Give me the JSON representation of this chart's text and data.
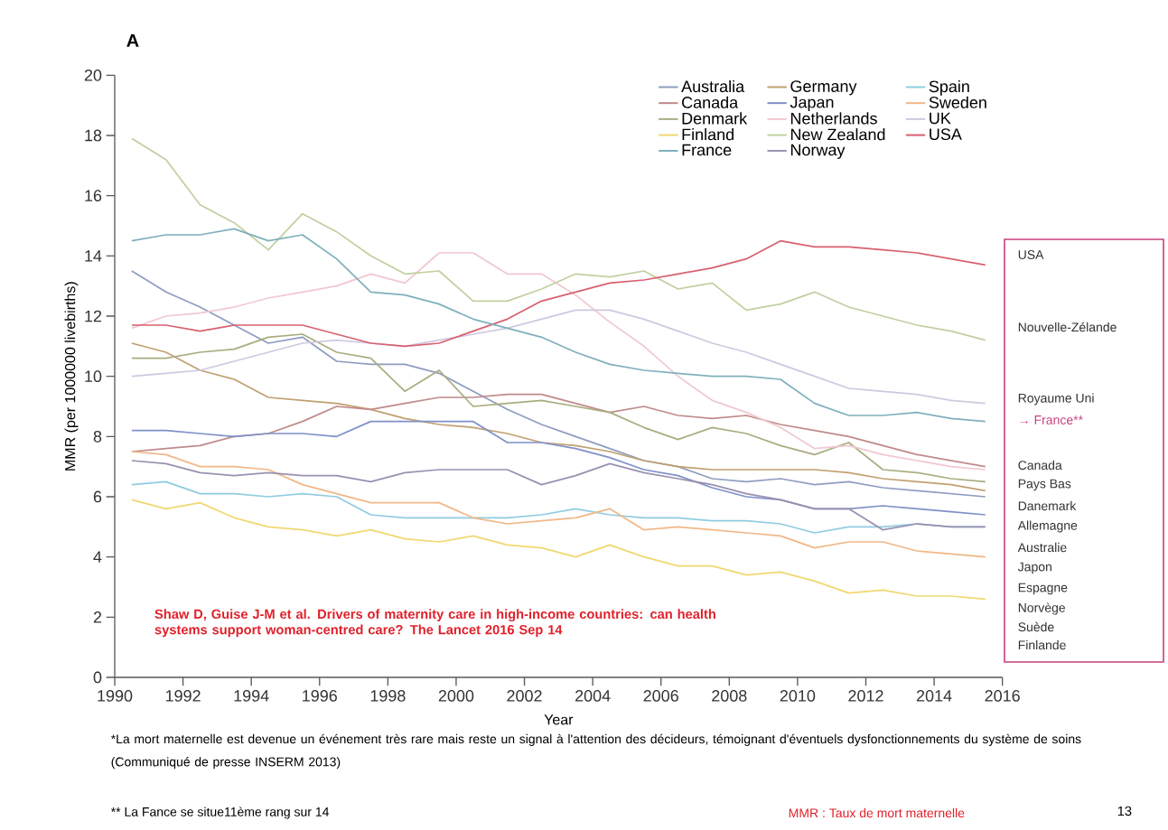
{
  "chart_data": {
    "type": "line",
    "title": "A",
    "xlabel": "Year",
    "ylabel": "MMR (per 1000000 livebirths)",
    "x": [
      1990.5,
      1991.5,
      1992.5,
      1993.5,
      1994.5,
      1995.5,
      1996.5,
      1997.5,
      1998.5,
      1999.5,
      2000.5,
      2001.5,
      2002.5,
      2003.5,
      2004.5,
      2005.5,
      2006.5,
      2007.5,
      2008.5,
      2009.5,
      2010.5,
      2011.5,
      2012.5,
      2013.5,
      2014.5,
      2015.5
    ],
    "xlim": [
      1990,
      2016
    ],
    "xticks": [
      1990,
      1992,
      1994,
      1996,
      1998,
      2000,
      2002,
      2004,
      2006,
      2008,
      2010,
      2012,
      2014,
      2016
    ],
    "ylim": [
      0,
      20
    ],
    "yticks": [
      0,
      2,
      4,
      6,
      8,
      10,
      12,
      14,
      16,
      18,
      20
    ],
    "legend": "top right",
    "marker": "none",
    "line_style": "solid",
    "series": [
      {
        "name": "Australia",
        "color": "#8e9dc0",
        "values": [
          13.5,
          12.8,
          12.3,
          11.7,
          11.1,
          11.3,
          10.5,
          10.4,
          10.4,
          10.1,
          9.5,
          8.9,
          8.4,
          8.0,
          7.6,
          7.2,
          7.0,
          6.6,
          6.5,
          6.6,
          6.4,
          6.5,
          6.3,
          6.2,
          6.1,
          6.0
        ]
      },
      {
        "name": "Canada",
        "color": "#c08a8a",
        "values": [
          7.5,
          7.6,
          7.7,
          8.0,
          8.1,
          8.5,
          9.0,
          8.9,
          9.1,
          9.3,
          9.3,
          9.4,
          9.4,
          9.1,
          8.8,
          9.0,
          8.7,
          8.6,
          8.7,
          8.4,
          8.2,
          8.0,
          7.7,
          7.4,
          7.2,
          7.0
        ]
      },
      {
        "name": "Denmark",
        "color": "#a9ad80",
        "values": [
          10.6,
          10.6,
          10.8,
          10.9,
          11.3,
          11.4,
          10.8,
          10.6,
          9.5,
          10.2,
          9.0,
          9.1,
          9.2,
          9.0,
          8.8,
          8.3,
          7.9,
          8.3,
          8.1,
          7.7,
          7.4,
          7.8,
          6.9,
          6.8,
          6.6,
          6.5
        ]
      },
      {
        "name": "Finland",
        "color": "#f0d870",
        "values": [
          5.9,
          5.6,
          5.8,
          5.3,
          5.0,
          4.9,
          4.7,
          4.9,
          4.6,
          4.5,
          4.7,
          4.4,
          4.3,
          4.0,
          4.4,
          4.0,
          3.7,
          3.7,
          3.4,
          3.5,
          3.2,
          2.8,
          2.9,
          2.7,
          2.7,
          2.6
        ]
      },
      {
        "name": "France",
        "color": "#7fb0bc",
        "values": [
          14.5,
          14.7,
          14.7,
          14.9,
          14.5,
          14.7,
          13.9,
          12.8,
          12.7,
          12.4,
          11.9,
          11.6,
          11.3,
          10.8,
          10.4,
          10.2,
          10.1,
          10.0,
          10.0,
          9.9,
          9.1,
          8.7,
          8.7,
          8.8,
          8.6,
          8.5
        ]
      },
      {
        "name": "Germany",
        "color": "#c0a070",
        "values": [
          11.1,
          10.8,
          10.2,
          9.9,
          9.3,
          9.2,
          9.1,
          8.9,
          8.6,
          8.4,
          8.3,
          8.1,
          7.8,
          7.7,
          7.5,
          7.2,
          7.0,
          6.9,
          6.9,
          6.9,
          6.9,
          6.8,
          6.6,
          6.5,
          6.4,
          6.2
        ]
      },
      {
        "name": "Japan",
        "color": "#7f90c8",
        "values": [
          8.2,
          8.2,
          8.1,
          8.0,
          8.1,
          8.1,
          8.0,
          8.5,
          8.5,
          8.5,
          8.5,
          7.8,
          7.8,
          7.6,
          7.3,
          6.9,
          6.7,
          6.3,
          6.0,
          5.9,
          5.6,
          5.6,
          5.7,
          5.6,
          5.5,
          5.4
        ]
      },
      {
        "name": "Netherlands",
        "color": "#f0c8d0",
        "values": [
          11.6,
          12.0,
          12.1,
          12.3,
          12.6,
          12.8,
          13.0,
          13.4,
          13.1,
          14.1,
          14.1,
          13.4,
          13.4,
          12.7,
          11.8,
          11.0,
          10.0,
          9.2,
          8.8,
          8.3,
          7.6,
          7.7,
          7.4,
          7.2,
          7.0,
          6.9
        ]
      },
      {
        "name": "New Zealand",
        "color": "#c0d0a0",
        "values": [
          17.9,
          17.2,
          15.7,
          15.1,
          14.2,
          15.4,
          14.8,
          14.0,
          13.4,
          13.5,
          12.5,
          12.5,
          12.9,
          13.4,
          13.3,
          13.5,
          12.9,
          13.1,
          12.2,
          12.4,
          12.8,
          12.3,
          12.0,
          11.7,
          11.5,
          11.2
        ]
      },
      {
        "name": "Norway",
        "color": "#9a90b0",
        "values": [
          7.2,
          7.1,
          6.8,
          6.7,
          6.8,
          6.7,
          6.7,
          6.5,
          6.8,
          6.9,
          6.9,
          6.9,
          6.4,
          6.7,
          7.1,
          6.8,
          6.6,
          6.4,
          6.1,
          5.9,
          5.6,
          5.6,
          4.9,
          5.1,
          5.0,
          5.0
        ]
      },
      {
        "name": "Spain",
        "color": "#90cce0",
        "values": [
          6.4,
          6.5,
          6.1,
          6.1,
          6.0,
          6.1,
          6.0,
          5.4,
          5.3,
          5.3,
          5.3,
          5.3,
          5.4,
          5.6,
          5.4,
          5.3,
          5.3,
          5.2,
          5.2,
          5.1,
          4.8,
          5.0,
          5.0,
          5.1,
          5.0,
          5.0
        ]
      },
      {
        "name": "Sweden",
        "color": "#f0b888",
        "values": [
          7.5,
          7.4,
          7.0,
          7.0,
          6.9,
          6.4,
          6.1,
          5.8,
          5.8,
          5.8,
          5.3,
          5.1,
          5.2,
          5.3,
          5.6,
          4.9,
          5.0,
          4.9,
          4.8,
          4.7,
          4.3,
          4.5,
          4.5,
          4.2,
          4.1,
          4.0
        ]
      },
      {
        "name": "UK",
        "color": "#d0c8e0",
        "values": [
          10.0,
          10.1,
          10.2,
          10.5,
          10.8,
          11.1,
          11.2,
          11.1,
          11.0,
          11.2,
          11.4,
          11.6,
          11.9,
          12.2,
          12.2,
          11.9,
          11.5,
          11.1,
          10.8,
          10.4,
          10.0,
          9.6,
          9.5,
          9.4,
          9.2,
          9.1
        ]
      },
      {
        "name": "USA",
        "color": "#d86070",
        "values": [
          11.7,
          11.7,
          11.5,
          11.7,
          11.7,
          11.7,
          11.4,
          11.1,
          11.0,
          11.1,
          11.5,
          11.9,
          12.5,
          12.8,
          13.1,
          13.2,
          13.4,
          13.6,
          13.9,
          14.5,
          14.3,
          14.3,
          14.2,
          14.1,
          13.9,
          13.7
        ]
      }
    ],
    "annotations": [
      "Shaw D, Guise J-M et al. Drivers of maternity care in high-income countries: can health systems support woman-centred care? The Lancet 2016 Sep 14",
      "USA",
      "Nouvelle-Zélande",
      "Royaume Uni",
      "→ France**",
      "Canada",
      "Pays Bas",
      "Danemark",
      "Allemagne",
      "Australie",
      "Japon",
      "Espagne",
      "Norvège",
      "Suède",
      "Finlande",
      "*La mort maternelle est devenue un événement très rare mais reste un signal  à l'attention des décideurs, témoignant d'éventuels dysfonctionnements du système de soins (Communiqué de  presse INSERM 2013)",
      "** La Fance se situe11ème rang sur 14",
      "MMR : Taux de mort maternelle",
      "13"
    ]
  }
}
